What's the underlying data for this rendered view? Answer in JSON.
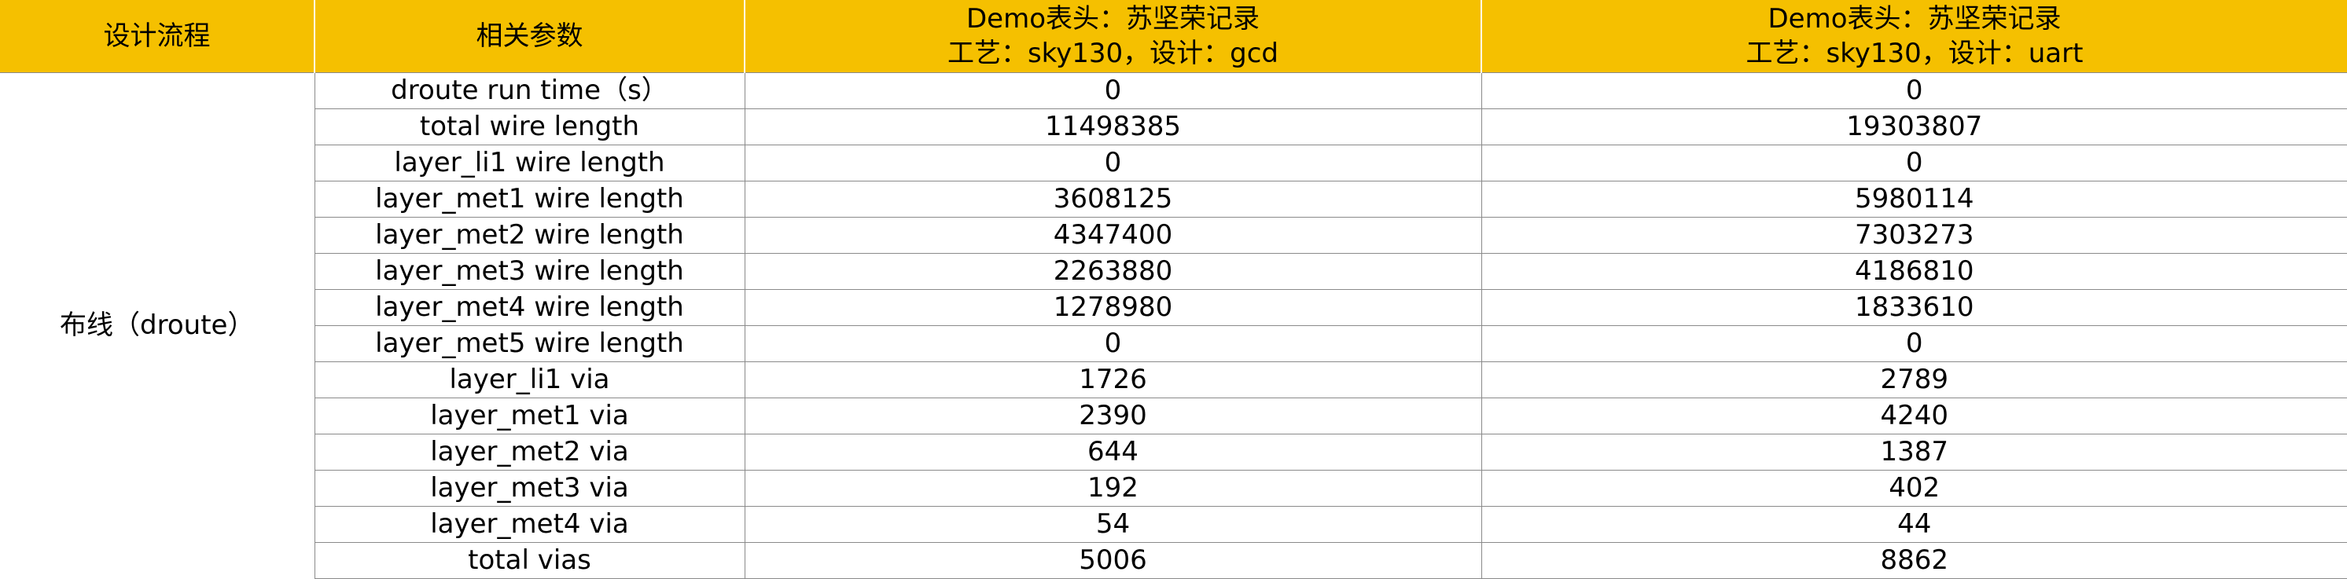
{
  "header": {
    "col1": "设计流程",
    "col2": "相关参数",
    "col3_line1": "Demo表头：苏坚荣记录",
    "col3_line2": "工艺：sky130，设计：gcd",
    "col4_line1": "Demo表头：苏坚荣记录",
    "col4_line2": "工艺：sky130，设计：uart"
  },
  "stage": "布线（droute）",
  "rows": [
    {
      "param": "droute run time（s）",
      "gcd": "0",
      "uart": "0"
    },
    {
      "param": "total wire length",
      "gcd": "11498385",
      "uart": "19303807"
    },
    {
      "param": "layer_li1 wire length",
      "gcd": "0",
      "uart": "0"
    },
    {
      "param": "layer_met1 wire length",
      "gcd": "3608125",
      "uart": "5980114"
    },
    {
      "param": "layer_met2 wire length",
      "gcd": "4347400",
      "uart": "7303273"
    },
    {
      "param": "layer_met3 wire length",
      "gcd": "2263880",
      "uart": "4186810"
    },
    {
      "param": "layer_met4 wire length",
      "gcd": "1278980",
      "uart": "1833610"
    },
    {
      "param": "layer_met5 wire length",
      "gcd": "0",
      "uart": "0"
    },
    {
      "param": "layer_li1 via",
      "gcd": "1726",
      "uart": "2789"
    },
    {
      "param": "layer_met1 via",
      "gcd": "2390",
      "uart": "4240"
    },
    {
      "param": "layer_met2 via",
      "gcd": "644",
      "uart": "1387"
    },
    {
      "param": "layer_met3 via",
      "gcd": "192",
      "uart": "402"
    },
    {
      "param": "layer_met4 via",
      "gcd": "54",
      "uart": "44"
    },
    {
      "param": "total vias",
      "gcd": "5006",
      "uart": "8862"
    }
  ],
  "colors": {
    "header_bg": "#f5c000",
    "grid": "#8a8a8a"
  }
}
